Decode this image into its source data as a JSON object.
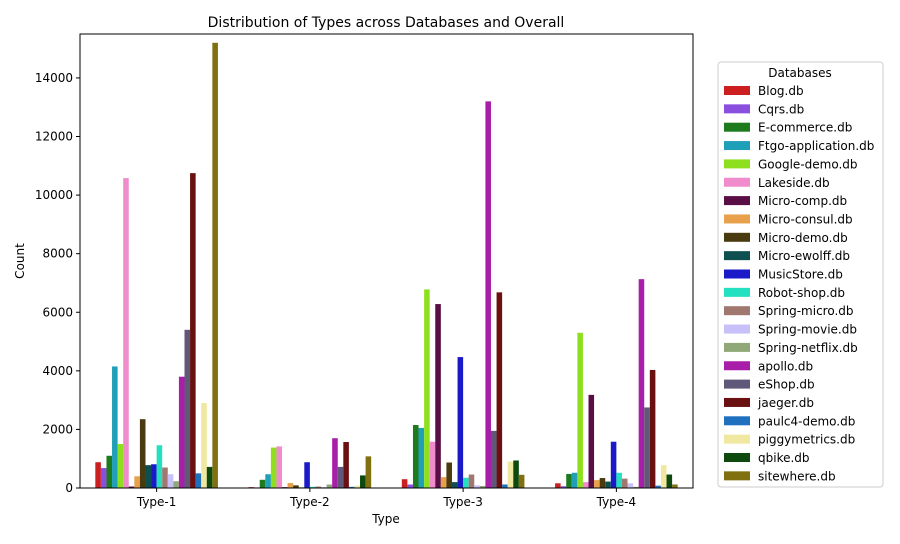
{
  "chart_data": {
    "type": "bar",
    "title": "Distribution of Types across Databases and Overall",
    "xlabel": "Type",
    "ylabel": "Count",
    "ylim": [
      0,
      15500
    ],
    "yticks": [
      0,
      2000,
      4000,
      6000,
      8000,
      10000,
      12000,
      14000
    ],
    "categories": [
      "Type-1",
      "Type-2",
      "Type-3",
      "Type-4"
    ],
    "legend": {
      "title": "Databases",
      "placement": "right"
    },
    "series": [
      {
        "name": "Blog.db",
        "color": "#cc1f1f",
        "values": [
          880,
          30,
          300,
          160
        ]
      },
      {
        "name": "Cqrs.db",
        "color": "#8b4fe0",
        "values": [
          680,
          20,
          120,
          60
        ]
      },
      {
        "name": "E-commerce.db",
        "color": "#1d7a1d",
        "values": [
          1100,
          280,
          2150,
          480
        ]
      },
      {
        "name": "Ftgo-application.db",
        "color": "#1fa0b8",
        "values": [
          4150,
          470,
          2050,
          520
        ]
      },
      {
        "name": "Google-demo.db",
        "color": "#8ee01e",
        "values": [
          1500,
          1380,
          6780,
          5300
        ]
      },
      {
        "name": "Lakeside.db",
        "color": "#f08ccc",
        "values": [
          10580,
          1420,
          1580,
          200
        ]
      },
      {
        "name": "Micro-comp.db",
        "color": "#5a0e46",
        "values": [
          50,
          30,
          6280,
          3180
        ]
      },
      {
        "name": "Micro-consul.db",
        "color": "#e8a04a",
        "values": [
          400,
          170,
          370,
          270
        ]
      },
      {
        "name": "Micro-demo.db",
        "color": "#4a3a10",
        "values": [
          2350,
          90,
          870,
          340
        ]
      },
      {
        "name": "Micro-ewolff.db",
        "color": "#0e5050",
        "values": [
          780,
          20,
          200,
          220
        ]
      },
      {
        "name": "MusicStore.db",
        "color": "#1a1ac8",
        "values": [
          810,
          880,
          4470,
          1580
        ]
      },
      {
        "name": "Robot-shop.db",
        "color": "#22e0c0",
        "values": [
          1460,
          40,
          350,
          520
        ]
      },
      {
        "name": "Spring-micro.db",
        "color": "#a07870",
        "values": [
          700,
          50,
          460,
          320
        ]
      },
      {
        "name": "Spring-movie.db",
        "color": "#c8c0f8",
        "values": [
          470,
          30,
          90,
          160
        ]
      },
      {
        "name": "Spring-netflix.db",
        "color": "#90a878",
        "values": [
          230,
          120,
          70,
          40
        ]
      },
      {
        "name": "apollo.db",
        "color": "#a81ea8",
        "values": [
          3800,
          1700,
          13200,
          7130
        ]
      },
      {
        "name": "eShop.db",
        "color": "#605878",
        "values": [
          5400,
          720,
          1950,
          2750
        ]
      },
      {
        "name": "jaeger.db",
        "color": "#6a1010",
        "values": [
          10750,
          1570,
          6680,
          4030
        ]
      },
      {
        "name": "paulc4-demo.db",
        "color": "#2070c0",
        "values": [
          500,
          40,
          120,
          80
        ]
      },
      {
        "name": "piggymetrics.db",
        "color": "#f0e8a0",
        "values": [
          2900,
          80,
          900,
          780
        ]
      },
      {
        "name": "qbike.db",
        "color": "#0e4a0e",
        "values": [
          720,
          430,
          940,
          460
        ]
      },
      {
        "name": "sitewhere.db",
        "color": "#807010",
        "values": [
          15200,
          1080,
          450,
          120
        ]
      }
    ]
  }
}
